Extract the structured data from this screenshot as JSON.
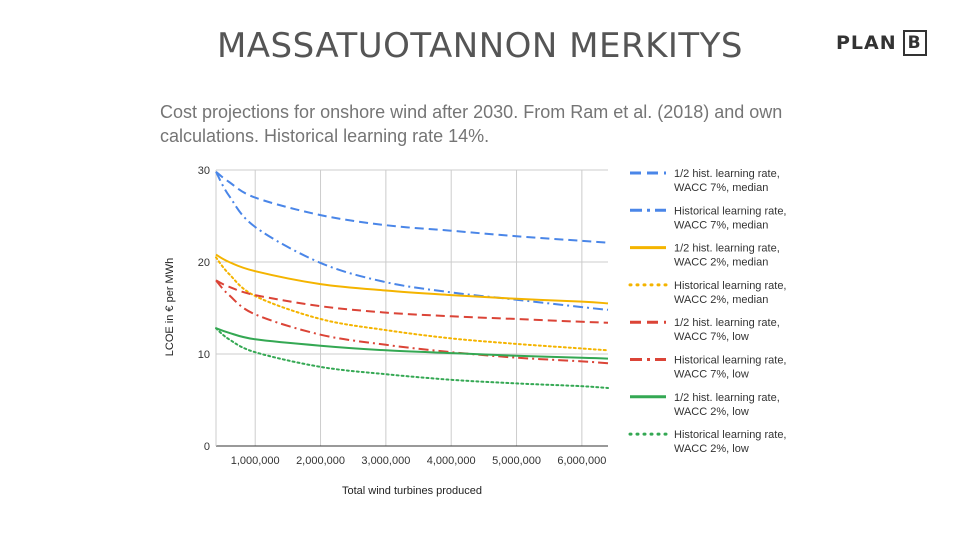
{
  "slide": {
    "title": "MASSATUOTANNON MERKITYS",
    "logo_word": "PLAN",
    "logo_letter": "B"
  },
  "chart_data": {
    "type": "line",
    "title": "Cost projections for onshore wind after 2030. From Ram et al. (2018) and own calculations. Historical learning rate 14%.",
    "xlabel": "Total wind turbines produced",
    "ylabel": "LCOE in € per MWh",
    "xlim": [
      400000,
      6400000
    ],
    "ylim": [
      0,
      30
    ],
    "x_ticks": [
      1000000,
      2000000,
      3000000,
      4000000,
      5000000,
      6000000
    ],
    "x_tick_labels": [
      "1,000,000",
      "2,000,000",
      "3,000,000",
      "4,000,000",
      "5,000,000",
      "6,000,000"
    ],
    "y_ticks": [
      0,
      10,
      20,
      30
    ],
    "y_tick_labels": [
      "0",
      "10",
      "20",
      "30"
    ],
    "legend_position": "right",
    "x": [
      400000,
      600000,
      1000000,
      2000000,
      3000000,
      4000000,
      5000000,
      6000000,
      6400000
    ],
    "series": [
      {
        "name": "1/2 hist. learning rate, WACC 7%, median",
        "label1": "1/2 hist. learning rate,",
        "label2": "WACC 7%, median",
        "color": "#4a86e8",
        "dash": "dash",
        "values": [
          29.8,
          28.7,
          27.0,
          25.1,
          24.0,
          23.4,
          22.8,
          22.3,
          22.1
        ]
      },
      {
        "name": "Historical learning rate, WACC 7%, median",
        "label1": "Historical learning rate,",
        "label2": "WACC 7%, median",
        "color": "#4a86e8",
        "dash": "dashdot",
        "values": [
          29.8,
          27.2,
          23.8,
          19.9,
          17.8,
          16.7,
          15.9,
          15.1,
          14.8
        ]
      },
      {
        "name": "1/2 hist. learning rate, WACC 2%, median",
        "label1": "1/2 hist. learning rate,",
        "label2": "WACC 2%, median",
        "color": "#f4b400",
        "dash": "solid",
        "values": [
          20.8,
          20.0,
          19.0,
          17.6,
          16.9,
          16.4,
          16.0,
          15.7,
          15.5
        ]
      },
      {
        "name": "Historical learning rate, WACC 2%, median",
        "label1": "Historical learning rate,",
        "label2": "WACC 2%, median",
        "color": "#f4b400",
        "dash": "dot",
        "values": [
          20.5,
          18.7,
          16.3,
          13.8,
          12.6,
          11.7,
          11.1,
          10.6,
          10.4
        ]
      },
      {
        "name": "1/2 hist. learning rate, WACC 7%, low",
        "label1": "1/2 hist. learning rate,",
        "label2": "WACC 7%, low",
        "color": "#db4437",
        "dash": "dash",
        "values": [
          18.0,
          17.3,
          16.4,
          15.2,
          14.5,
          14.1,
          13.8,
          13.5,
          13.4
        ]
      },
      {
        "name": "Historical learning rate, WACC 7%, low",
        "label1": "Historical learning rate,",
        "label2": "WACC 7%, low",
        "color": "#db4437",
        "dash": "dashdot",
        "values": [
          18.0,
          16.4,
          14.3,
          12.1,
          11.0,
          10.2,
          9.6,
          9.2,
          9.0
        ]
      },
      {
        "name": "1/2 hist. learning rate, WACC 2%, low",
        "label1": "1/2 hist. learning rate,",
        "label2": "WACC 2%, low",
        "color": "#34a853",
        "dash": "solid",
        "values": [
          12.8,
          12.3,
          11.6,
          10.9,
          10.4,
          10.1,
          9.8,
          9.6,
          9.5
        ]
      },
      {
        "name": "Historical learning rate, WACC 2%, low",
        "label1": "Historical learning rate,",
        "label2": "WACC 2%, low",
        "color": "#34a853",
        "dash": "dot",
        "values": [
          12.8,
          11.6,
          10.2,
          8.6,
          7.8,
          7.2,
          6.8,
          6.5,
          6.3
        ]
      }
    ]
  }
}
